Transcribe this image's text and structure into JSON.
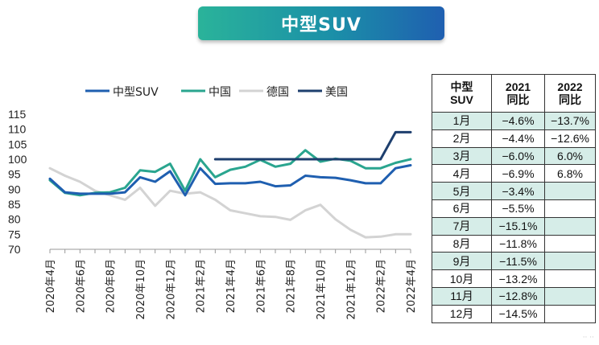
{
  "banner": {
    "title": "中型SUV"
  },
  "chart_data": {
    "type": "line",
    "title": "",
    "xlabel": "",
    "ylabel": "",
    "ylim": [
      70,
      115
    ],
    "yticks": [
      70,
      75,
      80,
      85,
      90,
      95,
      100,
      105,
      110,
      115
    ],
    "grid": false,
    "legend_position": "top",
    "categories": [
      "2020年4月",
      "2020年5月",
      "2020年6月",
      "2020年7月",
      "2020年8月",
      "2020年9月",
      "2020年10月",
      "2020年11月",
      "2020年12月",
      "2021年1月",
      "2021年2月",
      "2021年3月",
      "2021年4月",
      "2021年5月",
      "2021年6月",
      "2021年7月",
      "2021年8月",
      "2021年9月",
      "2021年10月",
      "2021年11月",
      "2021年12月",
      "2022年1月",
      "2022年2月",
      "2022年3月",
      "2022年4月"
    ],
    "tick_labels": [
      "2020年4月",
      "2020年6月",
      "2020年8月",
      "2020年10月",
      "2020年12月",
      "2021年2月",
      "2021年4月",
      "2021年6月",
      "2021年8月",
      "2021年10月",
      "2021年12月",
      "2022年2月",
      "2022年4月"
    ],
    "series": [
      {
        "name": "中型SUV",
        "color": "#1f5fb0",
        "values": [
          93.5,
          89.0,
          88.5,
          88.5,
          88.5,
          89.0,
          94.0,
          92.5,
          96.0,
          88.0,
          97.0,
          91.8,
          92.0,
          92.0,
          92.5,
          91.0,
          91.3,
          94.5,
          94.0,
          93.8,
          93.0,
          92.0,
          92.0,
          97.0,
          98.0
        ]
      },
      {
        "name": "中国",
        "color": "#2aa58f",
        "values": [
          93.0,
          88.8,
          88.0,
          88.8,
          89.0,
          90.5,
          96.3,
          95.8,
          98.5,
          89.5,
          100.0,
          94.0,
          96.5,
          97.5,
          99.8,
          97.5,
          98.5,
          103.0,
          99.2,
          100.2,
          99.5,
          97.0,
          97.0,
          98.8,
          100.0
        ]
      },
      {
        "name": "德国",
        "color": "#d3d3d3",
        "values": [
          97.0,
          94.5,
          92.5,
          89.5,
          88.0,
          86.5,
          90.5,
          84.5,
          89.5,
          88.5,
          89.0,
          86.5,
          83.0,
          82.0,
          81.0,
          80.8,
          79.8,
          83.0,
          84.8,
          80.0,
          76.5,
          74.0,
          74.2,
          75.0,
          75.0
        ]
      },
      {
        "name": "美国",
        "color": "#1e3f6e",
        "values": [
          null,
          null,
          null,
          null,
          null,
          null,
          null,
          null,
          null,
          null,
          null,
          100.0,
          100.0,
          100.0,
          100.0,
          100.0,
          100.0,
          100.0,
          100.0,
          100.0,
          100.0,
          100.0,
          100.0,
          109.0,
          109.0
        ]
      }
    ]
  },
  "table": {
    "headers": [
      "中型\nSUV",
      "2021\n同比",
      "2022\n同比"
    ],
    "rows": [
      [
        "1月",
        "−4.6%",
        "−13.7%"
      ],
      [
        "2月",
        "−4.4%",
        "−12.6%"
      ],
      [
        "3月",
        "−6.0%",
        "6.0%"
      ],
      [
        "4月",
        "−6.9%",
        "6.8%"
      ],
      [
        "5月",
        "−3.4%",
        ""
      ],
      [
        "6月",
        "−5.5%",
        ""
      ],
      [
        "7月",
        "−15.1%",
        ""
      ],
      [
        "8月",
        "−11.8%",
        ""
      ],
      [
        "9月",
        "−11.5%",
        ""
      ],
      [
        "10月",
        "−13.2%",
        ""
      ],
      [
        "11月",
        "−12.8%",
        ""
      ],
      [
        "12月",
        "−14.5%",
        ""
      ]
    ]
  }
}
